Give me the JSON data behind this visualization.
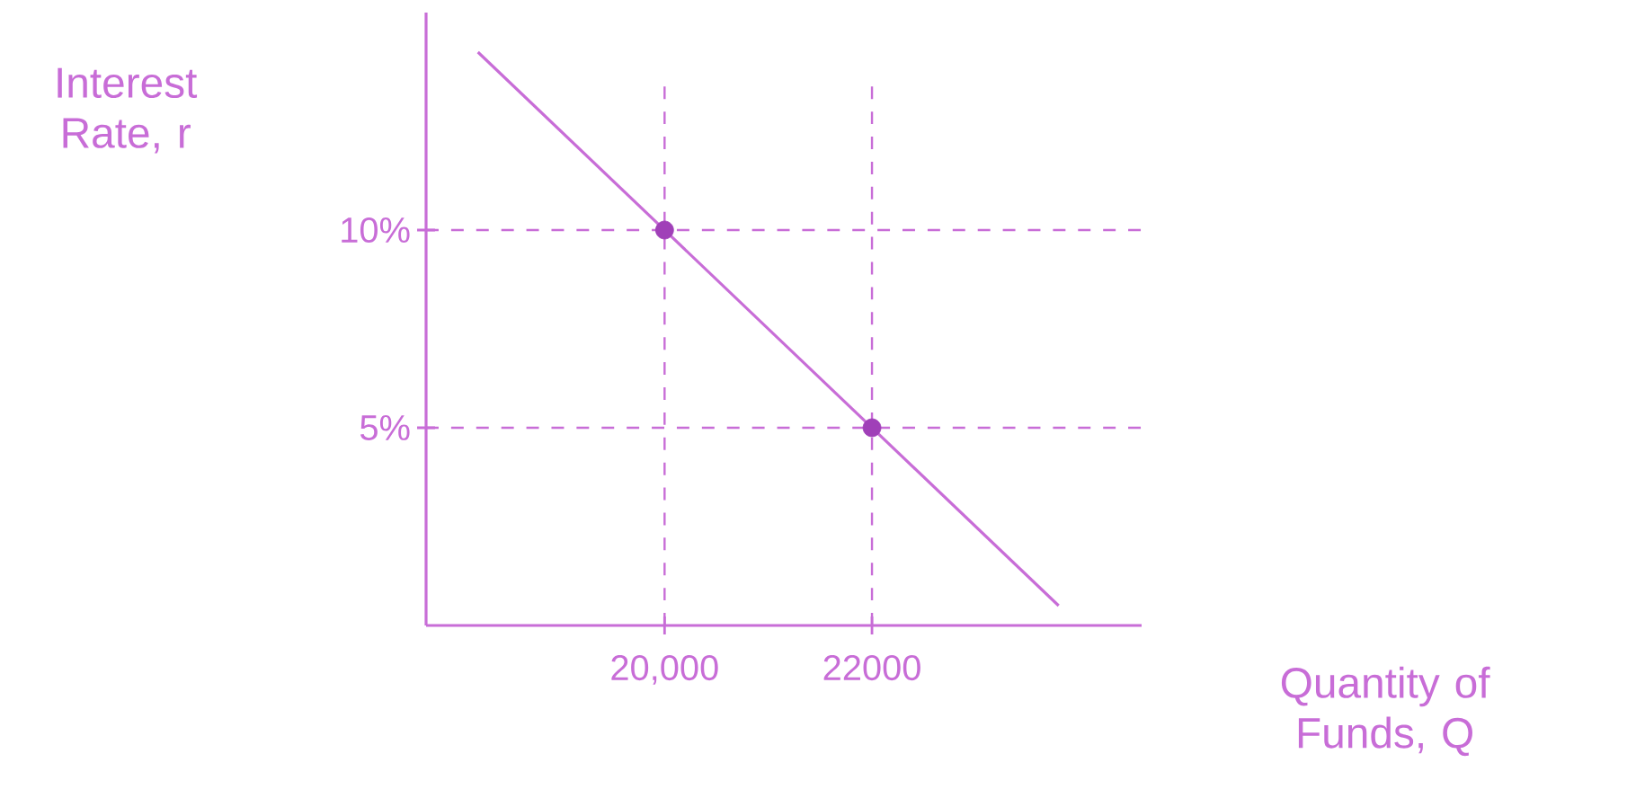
{
  "chart_data": {
    "type": "line",
    "xlabel": "Quantity of Funds, Q",
    "ylabel": "Interest Rate, r",
    "xlim": [
      17700,
      24600
    ],
    "ylim": [
      0,
      15.5
    ],
    "xticks": [
      {
        "value": 20000,
        "label": "20,000"
      },
      {
        "value": 22000,
        "label": "22000"
      }
    ],
    "yticks": [
      {
        "value": 10,
        "label": "10%"
      },
      {
        "value": 5,
        "label": "5%"
      }
    ],
    "series": [
      {
        "color": "#c86dd7",
        "x": [
          18200,
          23800
        ],
        "values": [
          14.5,
          0.5
        ]
      },
      {
        "type": "scatter",
        "color": "#a040b8",
        "marker": "circle",
        "x": [
          20000,
          22000
        ],
        "values": [
          10,
          5
        ]
      }
    ],
    "ref_lines": [
      {
        "axis": "x",
        "value": 20000,
        "color": "#c86dd7",
        "line_style": "dashed"
      },
      {
        "axis": "x",
        "value": 22000,
        "color": "#c86dd7",
        "line_style": "dashed"
      },
      {
        "axis": "y",
        "value": 10,
        "color": "#c86dd7",
        "line_style": "dashed"
      },
      {
        "axis": "y",
        "value": 5,
        "color": "#c86dd7",
        "line_style": "dashed"
      }
    ]
  }
}
